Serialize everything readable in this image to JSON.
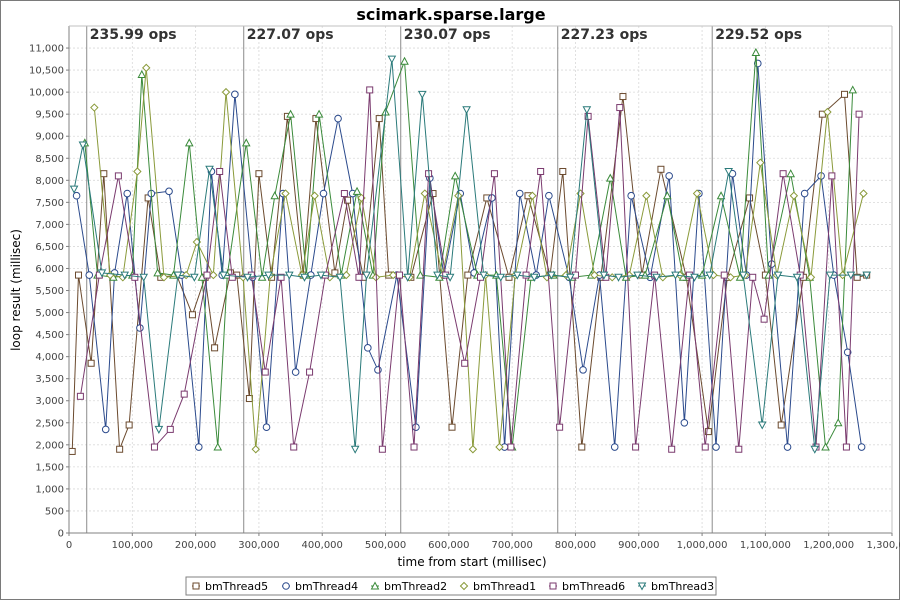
{
  "chart_data": {
    "type": "line",
    "title": "scimark.sparse.large",
    "xlabel": "time from start (millisec)",
    "ylabel": "loop result (millisec)",
    "xlim": [
      0,
      1300000
    ],
    "ylim": [
      0,
      11500
    ],
    "x_ticks": [
      0,
      100000,
      200000,
      300000,
      400000,
      500000,
      600000,
      700000,
      800000,
      900000,
      1000000,
      1100000,
      1200000,
      1300000
    ],
    "x_tick_labels": [
      "0",
      "100,000",
      "200,000",
      "300,000",
      "400,000",
      "500,000",
      "600,000",
      "700,000",
      "800,000",
      "900,000",
      "1,000,000",
      "1,100,000",
      "1,200,000",
      "1,300,000"
    ],
    "y_ticks": [
      0,
      500,
      1000,
      1500,
      2000,
      2500,
      3000,
      3500,
      4000,
      4500,
      5000,
      5500,
      6000,
      6500,
      7000,
      7500,
      8000,
      8500,
      9000,
      9500,
      10000,
      10500,
      11000
    ],
    "y_tick_labels": [
      "0",
      "500",
      "1,000",
      "1,500",
      "2,000",
      "2,500",
      "3,000",
      "3,500",
      "4,000",
      "4,500",
      "5,000",
      "5,500",
      "6,000",
      "6,500",
      "7,000",
      "7,500",
      "8,000",
      "8,500",
      "9,000",
      "9,500",
      "10,000",
      "10,500",
      "11,000"
    ],
    "grid": true,
    "legend_position": "bottom",
    "iteration_boundaries": [
      28000,
      276000,
      524000,
      772000,
      1016000
    ],
    "iteration_labels": [
      {
        "x": 28000,
        "text": "235.99 ops"
      },
      {
        "x": 276000,
        "text": "227.07 ops"
      },
      {
        "x": 524000,
        "text": "230.07 ops"
      },
      {
        "x": 772000,
        "text": "227.23 ops"
      },
      {
        "x": 1016000,
        "text": "229.52 ops"
      }
    ],
    "series": [
      {
        "name": "bmThread5",
        "color": "#6b4a2e",
        "marker": "square",
        "x": [
          5000,
          15000,
          35000,
          55000,
          80000,
          95000,
          125000,
          145000,
          170000,
          195000,
          215000,
          230000,
          255000,
          265000,
          285000,
          300000,
          320000,
          345000,
          370000,
          390000,
          420000,
          440000,
          465000,
          490000,
          505000,
          540000,
          575000,
          605000,
          630000,
          660000,
          695000,
          725000,
          760000,
          780000,
          810000,
          840000,
          875000,
          905000,
          935000,
          975000,
          1010000,
          1040000,
          1075000,
          1100000,
          1125000,
          1160000,
          1190000,
          1225000,
          1245000,
          1260000
        ],
        "y": [
          1850,
          5850,
          3850,
          8150,
          1900,
          2450,
          7600,
          5800,
          5850,
          4950,
          5800,
          4200,
          5900,
          5850,
          3050,
          8150,
          5800,
          9450,
          5850,
          9400,
          5900,
          7550,
          5800,
          9400,
          5850,
          5800,
          7700,
          2400,
          5850,
          7600,
          5800,
          7650,
          5850,
          8200,
          1950,
          5800,
          9900,
          5850,
          8250,
          5800,
          2300,
          5800,
          7600,
          5850,
          2450,
          5800,
          9500,
          9950,
          5800,
          5850
        ]
      },
      {
        "name": "bmThread4",
        "color": "#2b4a8c",
        "marker": "circle",
        "x": [
          12000,
          32000,
          58000,
          72000,
          92000,
          112000,
          130000,
          158000,
          178000,
          205000,
          225000,
          242000,
          262000,
          290000,
          312000,
          338000,
          358000,
          382000,
          402000,
          425000,
          448000,
          472000,
          488000,
          518000,
          548000,
          570000,
          592000,
          618000,
          640000,
          668000,
          688000,
          712000,
          738000,
          758000,
          790000,
          812000,
          838000,
          862000,
          888000,
          918000,
          948000,
          972000,
          995000,
          1022000,
          1048000,
          1070000,
          1088000,
          1110000,
          1135000,
          1162000,
          1188000,
          1208000,
          1230000,
          1252000
        ],
        "y": [
          7650,
          5850,
          2350,
          5900,
          7700,
          4650,
          7700,
          7750,
          5850,
          1950,
          8200,
          5850,
          9950,
          5800,
          2400,
          7700,
          3650,
          5850,
          7700,
          9400,
          7700,
          4200,
          3700,
          5850,
          2400,
          8050,
          5850,
          7700,
          5900,
          7600,
          1950,
          7700,
          5850,
          7650,
          5800,
          3700,
          5850,
          1950,
          7650,
          5800,
          8100,
          2500,
          7700,
          1950,
          8150,
          5850,
          10650,
          6100,
          1950,
          7700,
          8100,
          5850,
          4100,
          1950
        ]
      },
      {
        "name": "bmThread2",
        "color": "#3a8a3a",
        "marker": "triangle",
        "x": [
          25000,
          45000,
          70000,
          100000,
          115000,
          140000,
          165000,
          190000,
          210000,
          235000,
          250000,
          280000,
          305000,
          325000,
          350000,
          375000,
          395000,
          430000,
          455000,
          480000,
          500000,
          530000,
          555000,
          585000,
          610000,
          645000,
          675000,
          700000,
          730000,
          765000,
          795000,
          825000,
          855000,
          880000,
          910000,
          945000,
          970000,
          1000000,
          1030000,
          1060000,
          1085000,
          1105000,
          1140000,
          1170000,
          1195000,
          1215000,
          1238000
        ],
        "y": [
          8850,
          5850,
          5800,
          5850,
          10400,
          5900,
          5850,
          8850,
          5800,
          1950,
          5850,
          8850,
          5800,
          7650,
          9500,
          5850,
          9500,
          5850,
          7750,
          5850,
          9550,
          10700,
          5850,
          5800,
          8100,
          5850,
          5850,
          1950,
          5800,
          5850,
          5800,
          5850,
          8050,
          5800,
          5850,
          7650,
          5800,
          5850,
          7650,
          5800,
          10900,
          5850,
          8150,
          5800,
          1950,
          2500,
          10050
        ]
      },
      {
        "name": "bmThread1",
        "color": "#8a9a3a",
        "marker": "diamond",
        "x": [
          40000,
          65000,
          85000,
          108000,
          122000,
          150000,
          185000,
          202000,
          228000,
          248000,
          275000,
          295000,
          318000,
          342000,
          368000,
          388000,
          412000,
          438000,
          462000,
          485000,
          512000,
          538000,
          562000,
          590000,
          615000,
          638000,
          658000,
          680000,
          705000,
          732000,
          755000,
          785000,
          808000,
          830000,
          858000,
          885000,
          912000,
          938000,
          965000,
          992000,
          1018000,
          1045000,
          1068000,
          1092000,
          1118000,
          1145000,
          1172000,
          1198000,
          1222000,
          1255000
        ],
        "y": [
          9650,
          5850,
          5800,
          8200,
          10550,
          5800,
          5850,
          6600,
          5850,
          10000,
          5800,
          1900,
          5850,
          7700,
          5850,
          7650,
          5800,
          5850,
          7600,
          5800,
          5850,
          5800,
          7700,
          5850,
          7650,
          1900,
          5850,
          1950,
          5850,
          7650,
          5800,
          5850,
          7700,
          5850,
          5800,
          5850,
          7650,
          5800,
          5850,
          7700,
          5850,
          5800,
          5850,
          8400,
          5850,
          7650,
          5800,
          9550,
          5850,
          7700
        ]
      },
      {
        "name": "bmThread6",
        "color": "#7a3a6e",
        "marker": "square",
        "x": [
          18000,
          48000,
          78000,
          104000,
          135000,
          160000,
          182000,
          218000,
          238000,
          258000,
          288000,
          310000,
          335000,
          355000,
          380000,
          405000,
          435000,
          458000,
          475000,
          495000,
          522000,
          545000,
          568000,
          595000,
          625000,
          650000,
          672000,
          698000,
          722000,
          745000,
          775000,
          800000,
          820000,
          848000,
          870000,
          895000,
          925000,
          952000,
          980000,
          1005000,
          1035000,
          1058000,
          1080000,
          1098000,
          1128000,
          1155000,
          1180000,
          1205000,
          1228000,
          1248000
        ],
        "y": [
          3100,
          5850,
          8100,
          5800,
          1950,
          2350,
          3150,
          5850,
          8200,
          5800,
          5850,
          3650,
          5800,
          1950,
          3650,
          5850,
          7700,
          5800,
          10050,
          1900,
          5850,
          1950,
          8150,
          5850,
          3850,
          5800,
          8150,
          1950,
          5850,
          8200,
          2400,
          5850,
          9450,
          5800,
          9650,
          1950,
          5850,
          1900,
          5850,
          1950,
          5850,
          1900,
          5800,
          4850,
          8150,
          5850,
          1950,
          8100,
          1950,
          9500
        ]
      },
      {
        "name": "bmThread3",
        "color": "#2a7a7a",
        "marker": "triangle-down",
        "x": [
          8000,
          22000,
          52000,
          88000,
          118000,
          142000,
          172000,
          198000,
          222000,
          244000,
          282000,
          315000,
          348000,
          372000,
          398000,
          428000,
          452000,
          470000,
          510000,
          535000,
          558000,
          582000,
          602000,
          628000,
          655000,
          682000,
          708000,
          735000,
          762000,
          792000,
          818000,
          845000,
          868000,
          898000,
          928000,
          958000,
          988000,
          1012000,
          1042000,
          1065000,
          1095000,
          1120000,
          1150000,
          1178000,
          1202000,
          1235000,
          1260000
        ],
        "y": [
          7800,
          8800,
          5900,
          5850,
          5800,
          2350,
          5850,
          5800,
          8250,
          5850,
          5800,
          5850,
          5850,
          5800,
          5850,
          5800,
          1900,
          5850,
          10750,
          5800,
          9950,
          5850,
          5800,
          9600,
          5850,
          5800,
          5850,
          5800,
          5850,
          5800,
          9600,
          5850,
          5800,
          5850,
          5800,
          5850,
          5800,
          5850,
          8200,
          5850,
          2450,
          5850,
          5800,
          1900,
          5850,
          5850,
          5850
        ]
      }
    ]
  }
}
